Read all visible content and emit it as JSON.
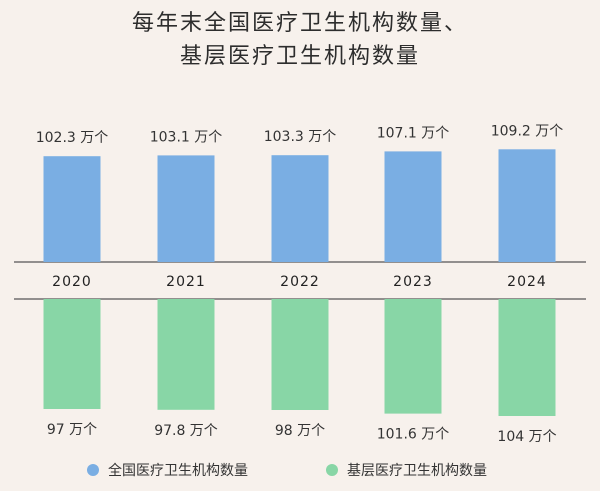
{
  "chart_data": {
    "type": "bar",
    "title": [
      "每年末全国医疗卫生机构数量、",
      "基层医疗卫生机构数量"
    ],
    "categories": [
      "2020",
      "2021",
      "2022",
      "2023",
      "2024"
    ],
    "series": [
      {
        "name": "全国医疗卫生机构数量",
        "values": [
          102.3,
          103.1,
          103.3,
          107.1,
          109.2
        ],
        "labels": [
          "102.3 万个",
          "103.1 万个",
          "103.3 万个",
          "107.1 万个",
          "109.2 万个"
        ],
        "color": "#7aaee3"
      },
      {
        "name": "基层医疗卫生机构数量",
        "values": [
          97,
          97.8,
          98,
          101.6,
          104
        ],
        "labels": [
          "97 万个",
          "97.8 万个",
          "98 万个",
          "101.6 万个",
          "104 万个"
        ],
        "color": "#88d6a6"
      }
    ],
    "colors": {
      "background": "#f7f1ec",
      "axis": "#555555"
    },
    "legend_position": "bottom",
    "grid": false
  }
}
